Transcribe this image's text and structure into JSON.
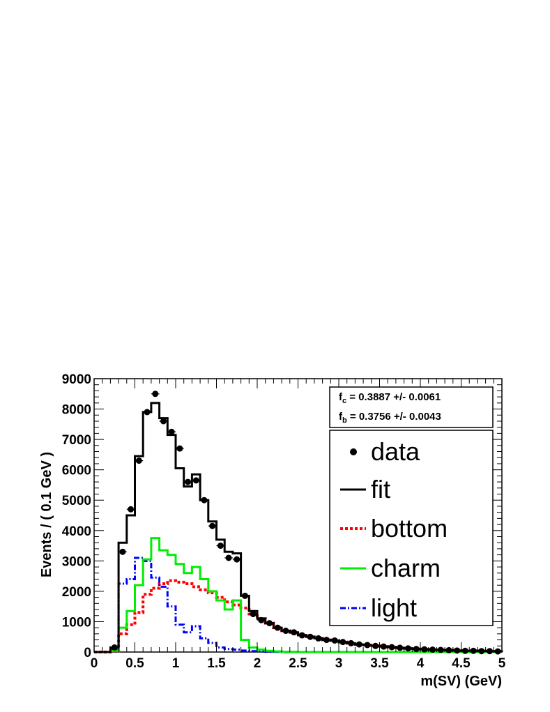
{
  "chart_data": {
    "type": "line",
    "xlabel": "m(SV) (GeV)",
    "ylabel": "Events / ( 0.1 GeV )",
    "xlim": [
      0,
      5
    ],
    "ylim": [
      0,
      9000
    ],
    "xticks": [
      "0",
      "0.5",
      "1",
      "1.5",
      "2",
      "2.5",
      "3",
      "3.5",
      "4",
      "4.5",
      "5"
    ],
    "yticks": [
      "0",
      "1000",
      "2000",
      "3000",
      "4000",
      "5000",
      "6000",
      "7000",
      "8000",
      "9000"
    ],
    "bin_edges": [
      0.0,
      0.1,
      0.2,
      0.3,
      0.4,
      0.5,
      0.6,
      0.7,
      0.8,
      0.9,
      1.0,
      1.1,
      1.2,
      1.3,
      1.4,
      1.5,
      1.6,
      1.7,
      1.8,
      1.9,
      2.0,
      2.1,
      2.2,
      2.3,
      2.4,
      2.5,
      2.6,
      2.7,
      2.8,
      2.9,
      3.0,
      3.1,
      3.2,
      3.3,
      3.4,
      3.5,
      3.6,
      3.7,
      3.8,
      3.9,
      4.0,
      4.1,
      4.2,
      4.3,
      4.4,
      4.5,
      4.6,
      4.7,
      4.8,
      4.9,
      5.0
    ],
    "data_points": {
      "x": [
        0.05,
        0.15,
        0.25,
        0.35,
        0.45,
        0.55,
        0.65,
        0.75,
        0.85,
        0.95,
        1.05,
        1.15,
        1.25,
        1.35,
        1.45,
        1.55,
        1.65,
        1.75,
        1.85,
        1.95,
        2.05,
        2.15,
        2.25,
        2.35,
        2.45,
        2.55,
        2.65,
        2.75,
        2.85,
        2.95,
        3.05,
        3.15,
        3.25,
        3.35,
        3.45,
        3.55,
        3.65,
        3.75,
        3.85,
        3.95,
        4.05,
        4.15,
        4.25,
        4.35,
        4.45,
        4.55,
        4.65,
        4.75,
        4.85,
        4.95
      ],
      "y": [
        0,
        0,
        150,
        3300,
        4700,
        6300,
        7900,
        8500,
        7600,
        7250,
        6700,
        5600,
        5650,
        5000,
        4150,
        3500,
        3100,
        3050,
        1850,
        1250,
        1050,
        950,
        800,
        700,
        650,
        550,
        500,
        450,
        400,
        380,
        330,
        290,
        250,
        230,
        200,
        180,
        160,
        140,
        120,
        100,
        90,
        80,
        70,
        60,
        50,
        40,
        40,
        30,
        30,
        20
      ]
    },
    "fit_text": [
      {
        "symbol": "f",
        "sub": "c",
        "value": " =  0.3887 +/- 0.0061"
      },
      {
        "symbol": "f",
        "sub": "b",
        "value": " =  0.3756 +/- 0.0043"
      }
    ],
    "series": [
      {
        "name": "fit",
        "color": "#000000",
        "style": "solid",
        "values": [
          0,
          0,
          150,
          3600,
          4500,
          6450,
          7900,
          8200,
          7700,
          7150,
          6050,
          5450,
          5850,
          5000,
          4300,
          3700,
          3300,
          3250,
          1850,
          1350,
          1100,
          950,
          800,
          700,
          650,
          550,
          500,
          450,
          400,
          380,
          330,
          290,
          250,
          230,
          200,
          180,
          160,
          140,
          120,
          100,
          90,
          80,
          70,
          60,
          50,
          40,
          40,
          30,
          30,
          20
        ]
      },
      {
        "name": "bottom",
        "color": "#ff0000",
        "style": "dotted",
        "values": [
          0,
          0,
          40,
          600,
          900,
          1300,
          1900,
          2100,
          2250,
          2350,
          2300,
          2250,
          2150,
          2050,
          1950,
          1800,
          1650,
          1550,
          1450,
          1250,
          1100,
          950,
          800,
          700,
          650,
          550,
          500,
          450,
          400,
          380,
          330,
          290,
          250,
          230,
          200,
          180,
          160,
          140,
          120,
          100,
          90,
          80,
          70,
          60,
          50,
          40,
          40,
          30,
          30,
          20
        ]
      },
      {
        "name": "charm",
        "color": "#00ee00",
        "style": "solid",
        "values": [
          0,
          0,
          40,
          800,
          1350,
          2200,
          3050,
          3750,
          3350,
          3200,
          2900,
          2600,
          2800,
          2400,
          2000,
          1700,
          1400,
          1700,
          400,
          150,
          80,
          40,
          20,
          10,
          5,
          0,
          0,
          0,
          0,
          0,
          0,
          0,
          0,
          0,
          0,
          0,
          0,
          0,
          0,
          0,
          0,
          0,
          0,
          0,
          0,
          0,
          0,
          0,
          0,
          0
        ]
      },
      {
        "name": "light",
        "color": "#0000ff",
        "style": "dashdot",
        "values": [
          0,
          0,
          70,
          2250,
          2400,
          3100,
          3000,
          2450,
          2150,
          1500,
          900,
          650,
          850,
          450,
          300,
          150,
          100,
          80,
          50,
          30,
          20,
          10,
          5,
          0,
          0,
          0,
          0,
          0,
          0,
          0,
          0,
          0,
          0,
          0,
          0,
          0,
          0,
          0,
          0,
          0,
          0,
          0,
          0,
          0,
          0,
          0,
          0,
          0,
          0,
          0
        ]
      }
    ],
    "legend": {
      "position": "top-right",
      "entries": [
        "data",
        "fit",
        "bottom",
        "charm",
        "light"
      ]
    },
    "grid": false
  }
}
